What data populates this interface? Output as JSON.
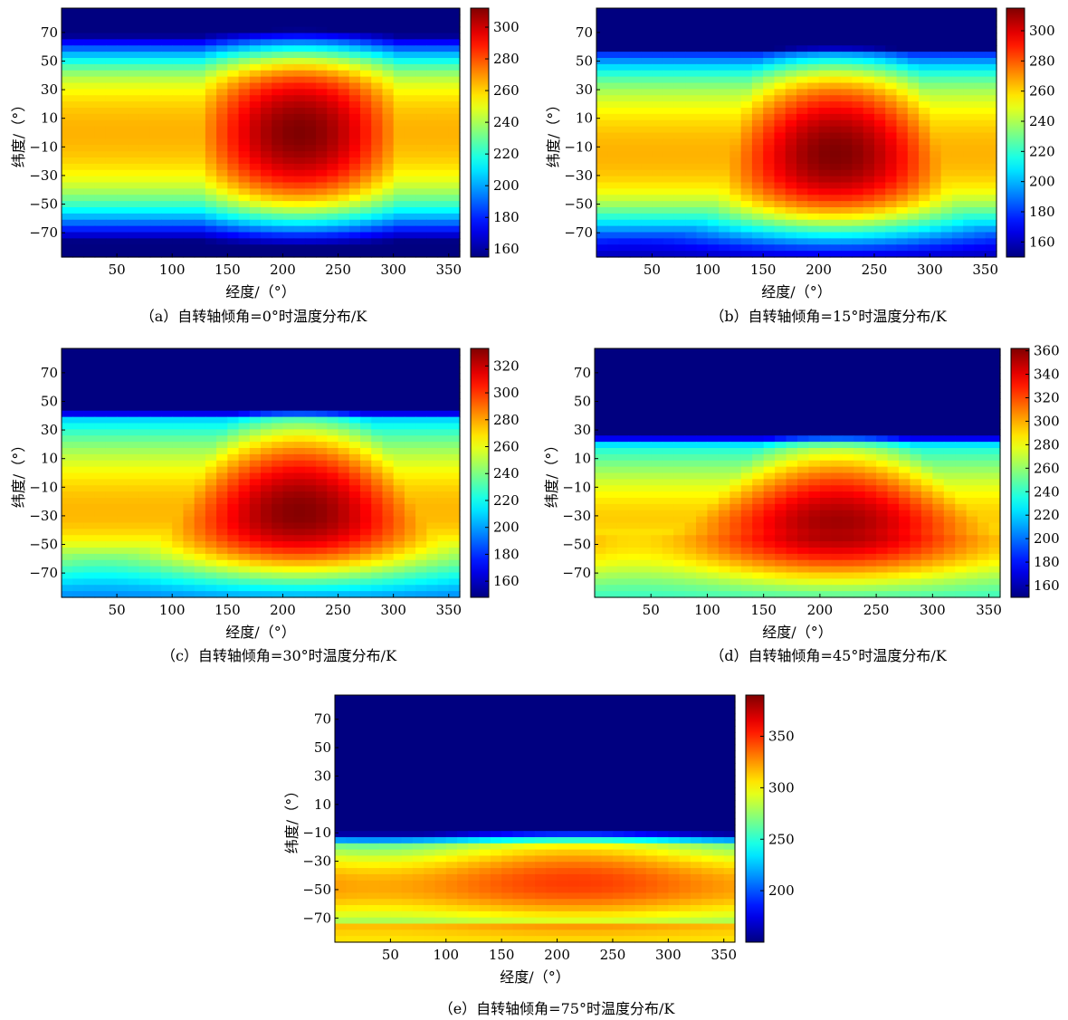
{
  "chart_data": [
    {
      "type": "heatmap",
      "caption": "（a）自转轴倾角=0°时温度分布/K",
      "xlabel": "经度/（°）",
      "ylabel": "纬度/（°）",
      "x_ticks": [
        50,
        100,
        150,
        200,
        250,
        300,
        350
      ],
      "y_ticks": [
        70,
        50,
        30,
        10,
        -10,
        -30,
        -50,
        -70
      ],
      "xlim": [
        0,
        360
      ],
      "ylim": [
        -87,
        87
      ],
      "colorbar": {
        "min": 155,
        "max": 312,
        "ticks": [
          160,
          180,
          200,
          220,
          240,
          260,
          280,
          300
        ]
      },
      "colormap": "jet",
      "tilt_deg": 0
    },
    {
      "type": "heatmap",
      "caption": "（b）自转轴倾角=15°时温度分布/K",
      "xlabel": "经度/（°）",
      "ylabel": "纬度/（°）",
      "x_ticks": [
        50,
        100,
        150,
        200,
        250,
        300,
        350
      ],
      "y_ticks": [
        70,
        50,
        30,
        10,
        -10,
        -30,
        -50,
        -70
      ],
      "xlim": [
        0,
        360
      ],
      "ylim": [
        -87,
        87
      ],
      "colorbar": {
        "min": 150,
        "max": 315,
        "ticks": [
          160,
          180,
          200,
          220,
          240,
          260,
          280,
          300
        ]
      },
      "colormap": "jet",
      "tilt_deg": 15
    },
    {
      "type": "heatmap",
      "caption": "（c）自转轴倾角=30°时温度分布/K",
      "xlabel": "经度/（°）",
      "ylabel": "纬度/（°）",
      "x_ticks": [
        50,
        100,
        150,
        200,
        250,
        300,
        350
      ],
      "y_ticks": [
        70,
        50,
        30,
        10,
        -10,
        -30,
        -50,
        -70
      ],
      "xlim": [
        0,
        360
      ],
      "ylim": [
        -87,
        87
      ],
      "colorbar": {
        "min": 148,
        "max": 333,
        "ticks": [
          160,
          180,
          200,
          220,
          240,
          260,
          280,
          300,
          320
        ]
      },
      "colormap": "jet",
      "tilt_deg": 30
    },
    {
      "type": "heatmap",
      "caption": "（d）自转轴倾角=45°时温度分布/K",
      "xlabel": "经度/（°）",
      "ylabel": "纬度/（°）",
      "x_ticks": [
        50,
        100,
        150,
        200,
        250,
        300,
        350
      ],
      "y_ticks": [
        70,
        50,
        30,
        10,
        -10,
        -30,
        -50,
        -70
      ],
      "xlim": [
        0,
        360
      ],
      "ylim": [
        -87,
        87
      ],
      "colorbar": {
        "min": 150,
        "max": 362,
        "ticks": [
          160,
          180,
          200,
          220,
          240,
          260,
          280,
          300,
          320,
          340,
          360
        ]
      },
      "colormap": "jet",
      "tilt_deg": 45
    },
    {
      "type": "heatmap",
      "caption": "（e）自转轴倾角=75°时温度分布/K",
      "xlabel": "经度/（°）",
      "ylabel": "纬度/（°）",
      "x_ticks": [
        50,
        100,
        150,
        200,
        250,
        300,
        350
      ],
      "y_ticks": [
        70,
        50,
        30,
        10,
        -10,
        -30,
        -50,
        -70
      ],
      "xlim": [
        0,
        360
      ],
      "ylim": [
        -87,
        87
      ],
      "colorbar": {
        "min": 150,
        "max": 390,
        "ticks": [
          200,
          250,
          300,
          350
        ]
      },
      "colormap": "jet",
      "tilt_deg": 75
    }
  ]
}
